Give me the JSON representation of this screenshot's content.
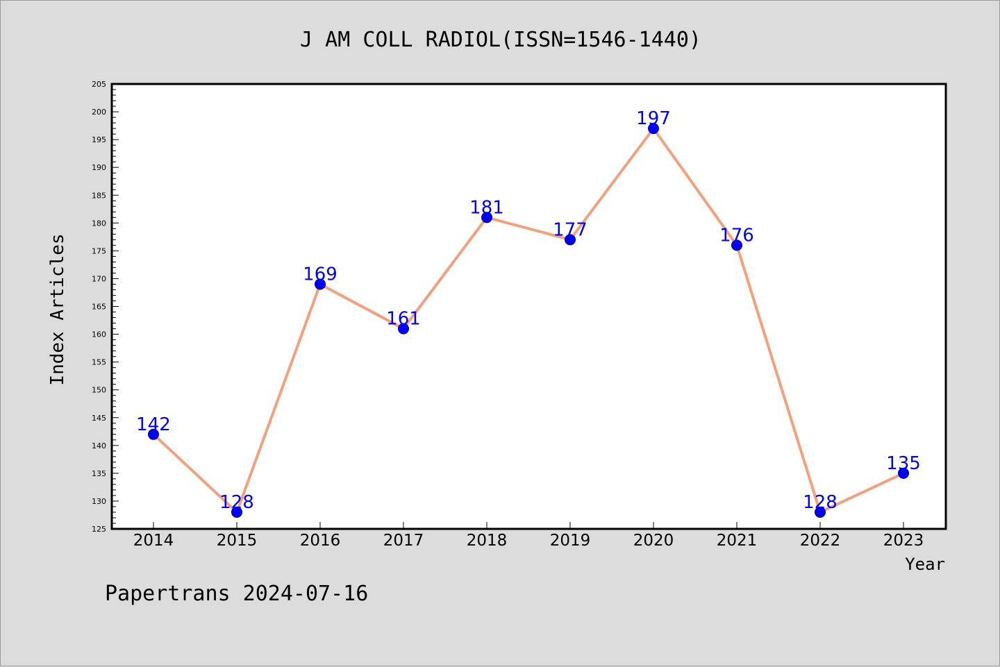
{
  "chart_data": {
    "type": "line",
    "title": "J AM COLL RADIOL(ISSN=1546-1440)",
    "xlabel": "Year",
    "ylabel": "Index Articles",
    "categories": [
      "2014",
      "2015",
      "2016",
      "2017",
      "2018",
      "2019",
      "2020",
      "2021",
      "2022",
      "2023"
    ],
    "series": [
      {
        "values": [
          142,
          128,
          169,
          161,
          181,
          177,
          197,
          176,
          128,
          135
        ]
      }
    ],
    "ylim": [
      125,
      205
    ],
    "y_ticks": [
      125,
      130,
      135,
      140,
      145,
      150,
      155,
      160,
      165,
      170,
      175,
      180,
      185,
      190,
      195,
      200,
      205
    ],
    "grid": false,
    "data_labels": true,
    "colors": {
      "line": "#f4a07a",
      "marker": "#0000ff",
      "label": "#0000ff",
      "background": "#dcdcdc",
      "plot_background": "#ffffff"
    }
  },
  "footer": "Papertrans 2024-07-16"
}
